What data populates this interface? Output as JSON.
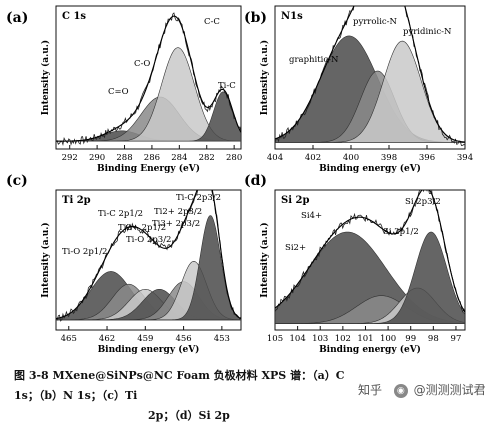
{
  "caption": {
    "line1": "图 3-8 MXene@SiNPs@NC Foam 负极材料 XPS 谱：（a）C 1s；（b）N 1s；（c）Ti",
    "line2": "2p；（d）Si 2p"
  },
  "watermark": {
    "text1": "知乎",
    "text2": "@测测测试君",
    "icon": "zhihu-user-icon"
  },
  "colors": {
    "fill_dark": "#4a4a4a",
    "fill_mid": "#8a8a8a",
    "fill_light": "#c9c9c9",
    "raw": "#222222",
    "bg": "#ffffff"
  },
  "chart_data": [
    {
      "panel": "(a)",
      "corner_label": "C 1s",
      "type": "area",
      "xlabel": "Binding Energy (eV)",
      "ylabel": "Intensity (a.u.)",
      "xlim": [
        293,
        279.5
      ],
      "xticks": [
        292,
        290,
        288,
        286,
        284,
        282,
        280
      ],
      "ylim": [
        0,
        1.1
      ],
      "peaks": [
        {
          "label": "C=O",
          "center": 288.2,
          "height": 0.08,
          "width": 1.3
        },
        {
          "label": "C-O",
          "center": 285.4,
          "height": 0.34,
          "width": 1.4
        },
        {
          "label": "C-C",
          "center": 284.1,
          "height": 0.72,
          "width": 1.2
        },
        {
          "label": "Ti-C",
          "center": 280.8,
          "height": 0.38,
          "width": 0.7
        }
      ],
      "baseline": 0.06
    },
    {
      "panel": "(b)",
      "corner_label": "N1s",
      "type": "area",
      "xlabel": "Binding energy (eV)",
      "ylabel": "Intensity (a.u.)",
      "xlim": [
        404,
        394
      ],
      "xticks": [
        404,
        402,
        400,
        398,
        396,
        394
      ],
      "ylim": [
        0,
        1.1
      ],
      "peaks": [
        {
          "label": "graphitic-N",
          "center": 400.1,
          "height": 0.82,
          "width": 1.5
        },
        {
          "label": "pyrrolic-N",
          "center": 398.6,
          "height": 0.55,
          "width": 0.9
        },
        {
          "label": "pyridinic-N",
          "center": 397.3,
          "height": 0.78,
          "width": 1.0
        }
      ],
      "baseline": 0.05
    },
    {
      "panel": "(c)",
      "corner_label": "Ti 2p",
      "type": "area",
      "xlabel": "Binding energy (eV)",
      "ylabel": "Intensity (a.u.)",
      "xlim": [
        466,
        451.5
      ],
      "xticks": [
        465,
        462,
        459,
        456,
        453
      ],
      "ylim": [
        0,
        1.1
      ],
      "peaks": [
        {
          "label": "Ti-O 2p1/2",
          "center": 461.7,
          "height": 0.38,
          "width": 1.6
        },
        {
          "label": "Ti-C 2p1/2",
          "center": 460.3,
          "height": 0.28,
          "width": 1.3
        },
        {
          "label": "Ti2+ 2p1/2",
          "center": 459.0,
          "height": 0.24,
          "width": 1.3
        },
        {
          "label": "Ti-O 2p3/2",
          "center": 457.9,
          "height": 0.24,
          "width": 1.3
        },
        {
          "label": "Ti3+ 2p3/2",
          "center": 456.0,
          "height": 0.3,
          "width": 1.2
        },
        {
          "label": "Ti2+ 2p3/2",
          "center": 455.2,
          "height": 0.46,
          "width": 1.0
        },
        {
          "label": "Ti-C 2p3/2",
          "center": 453.9,
          "height": 0.82,
          "width": 0.8
        }
      ],
      "baseline": 0.08
    },
    {
      "panel": "(d)",
      "corner_label": "Si 2p",
      "type": "area",
      "xlabel": "Binding energy (eV)",
      "ylabel": "Intensity (a.u.)",
      "xlim": [
        105,
        96.6
      ],
      "xticks": [
        105,
        104,
        103,
        102,
        101,
        100,
        99,
        98,
        97
      ],
      "ylim": [
        0,
        1.1
      ],
      "peaks": [
        {
          "label": "Si4+",
          "center": 101.8,
          "height": 0.72,
          "width": 1.7
        },
        {
          "label": "Si2+",
          "center": 100.3,
          "height": 0.22,
          "width": 1.1
        },
        {
          "label": "Si 2p1/2",
          "center": 98.7,
          "height": 0.28,
          "width": 0.8
        },
        {
          "label": "Si 2p3/2",
          "center": 98.1,
          "height": 0.72,
          "width": 0.7
        }
      ],
      "baseline": 0.05
    }
  ]
}
